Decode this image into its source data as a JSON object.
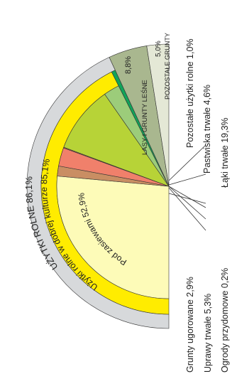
{
  "chart_data": {
    "type": "pie",
    "layout": "half-pie, rotated",
    "slices": [
      {
        "label": "Pod zasiewami 52,9%",
        "value": 52.9,
        "color": "#fdfbb8"
      },
      {
        "label": "Grunty ugorowane 2,9%",
        "value": 2.9,
        "color": "#c98e63"
      },
      {
        "label": "Uprawy trwałe 5,3%",
        "value": 5.3,
        "color": "#f0806b"
      },
      {
        "label": "Ogrody przydomowe 0,2%",
        "value": 0.2,
        "color": "#d96a5a"
      },
      {
        "label": "Łąki trwałe 19,3%",
        "value": 19.3,
        "color": "#b7d337"
      },
      {
        "label": "Pastwiska trwałe 4,6%",
        "value": 4.6,
        "color": "#9ccc7a"
      },
      {
        "label": "Pozostałe użytki rolne 1,0%",
        "value": 1.0,
        "color": "#12a35a"
      },
      {
        "label": "LASY I GRUNTY LEŚNE 8,8%",
        "value": 8.8,
        "color": "#a9b78f"
      },
      {
        "label": "POZOSTAŁE GRUNTY 5,0%",
        "value": 5.0,
        "color": "#e4e8d6"
      }
    ],
    "rings": [
      {
        "label": "Użytki rolne w dobrej kulturze 85,1%",
        "value": 85.1,
        "color": "#ffec00"
      },
      {
        "label": "UŻYTKI ROLNE 86,1%",
        "value": 86.1,
        "color": "#d7d9db"
      }
    ]
  },
  "labels": {
    "pod_zasiewami": "Pod zasiewami 52,9%",
    "dobra_kultura": "Użytki rolne w dobrej kulturze 85,1%",
    "uzytki_rolne": "UŻYTKI ROLNE 86,1%",
    "lasy_value": "8,8%",
    "lasy_name": "LASY I GRUNTY LEŚNE",
    "pozostale_value": "5,0%",
    "pozostale_name": "POZOSTAŁE GRUNTY",
    "grunty_ugorowane": "Grunty ugorowane 2,9%",
    "uprawy_trwale": "Uprawy trwałe 5,3%",
    "ogrody": "Ogrody przydomowe 0,2%",
    "laki": "Łąki trwałe 19,3%",
    "pastwiska": "Pastwiska trwałe 4,6%",
    "pozostale_uzytki": "Pozostałe użytki rolne 1,0%"
  }
}
